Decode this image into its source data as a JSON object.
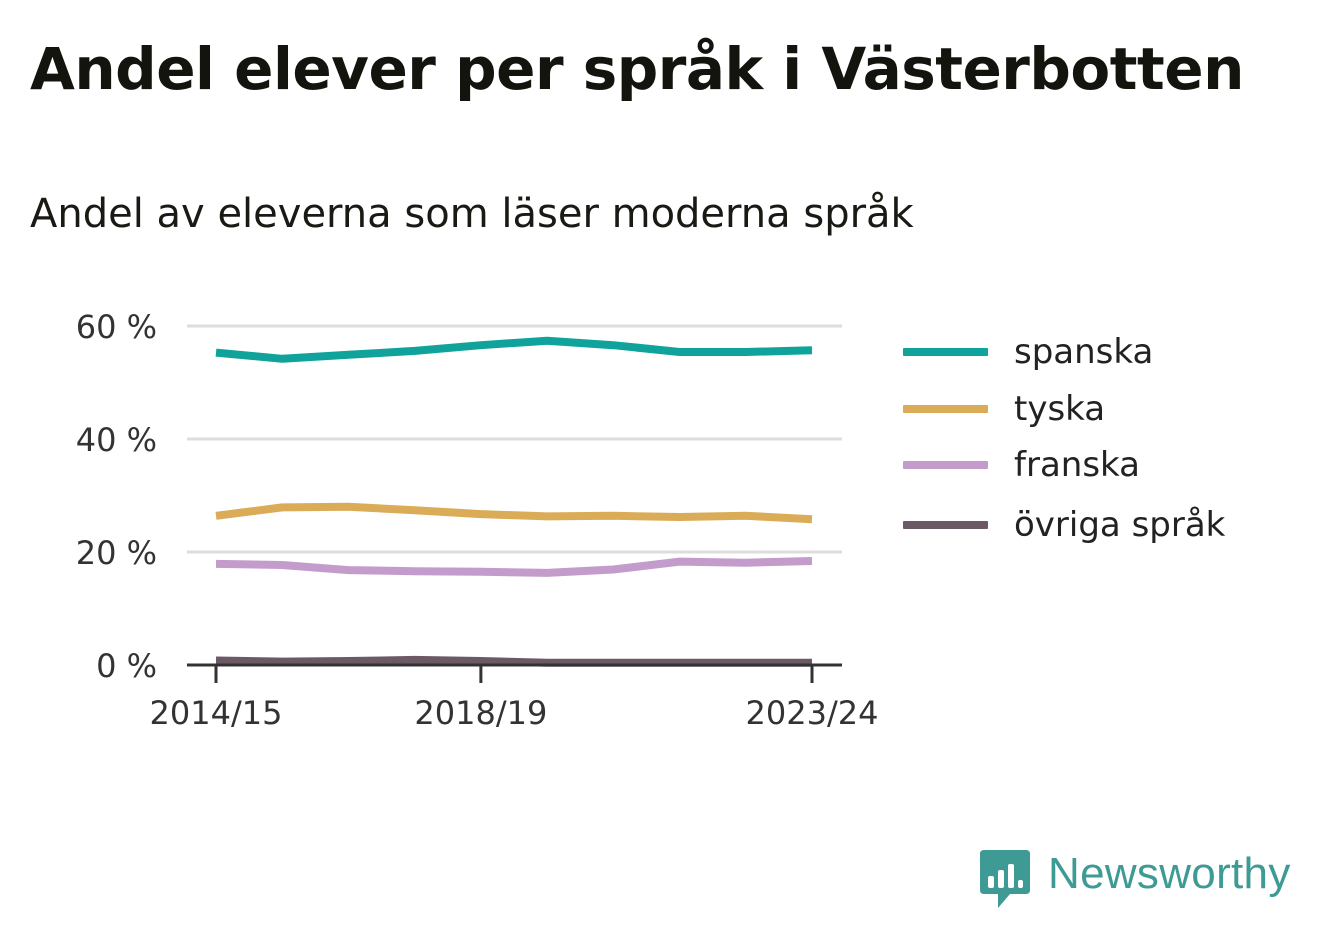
{
  "title": "Andel elever per språk i Västerbotten",
  "subtitle": "Andel av eleverna som läser moderna språk",
  "chart_data": {
    "type": "line",
    "x": [
      "2014/15",
      "2015/16",
      "2016/17",
      "2017/18",
      "2018/19",
      "2019/20",
      "2020/21",
      "2021/22",
      "2022/23",
      "2023/24"
    ],
    "x_tick_labels": [
      "2014/15",
      "2018/19",
      "2023/24"
    ],
    "y_ticks": [
      0,
      20,
      40,
      60
    ],
    "y_tick_labels": [
      "0 %",
      "20 %",
      "40 %",
      "60 %"
    ],
    "ylim": [
      0,
      60
    ],
    "grid": true,
    "legend_position": "right",
    "series": [
      {
        "name": "spanska",
        "color": "#0fa39b",
        "values": [
          55.3,
          54.2,
          54.9,
          55.6,
          56.6,
          57.4,
          56.6,
          55.4,
          55.4,
          55.7
        ]
      },
      {
        "name": "tyska",
        "color": "#dbac57",
        "values": [
          26.4,
          27.9,
          28.0,
          27.4,
          26.7,
          26.3,
          26.4,
          26.2,
          26.4,
          25.8
        ]
      },
      {
        "name": "franska",
        "color": "#c39ccc",
        "values": [
          17.9,
          17.7,
          16.8,
          16.6,
          16.5,
          16.3,
          16.9,
          18.3,
          18.1,
          18.4
        ]
      },
      {
        "name": "övriga språk",
        "color": "#6b5a66",
        "values": [
          0.8,
          0.6,
          0.7,
          0.9,
          0.7,
          0.4,
          0.4,
          0.4,
          0.4,
          0.4
        ]
      }
    ]
  },
  "logo": {
    "text": "Newsworthy",
    "icon": "newsworthy-chart-bubble-icon",
    "color": "#3d9a94"
  }
}
